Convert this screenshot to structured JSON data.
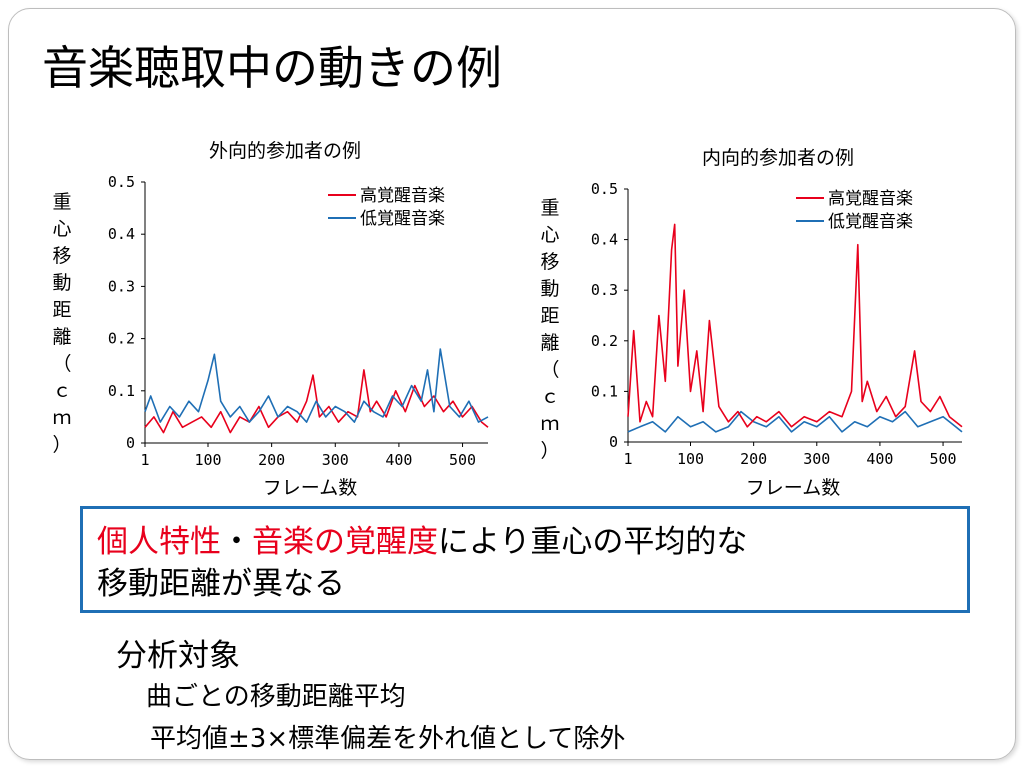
{
  "slide": {
    "title": "音楽聴取中の動きの例",
    "summary": {
      "highlight1": "個人特性",
      "separator": "・",
      "highlight2": "音楽の覚醒度",
      "rest_line1": "により重心の平均的な",
      "line2": "移動距離が異なる"
    },
    "section_heading": "分析対象",
    "detail_lines": [
      "曲ごとの移動距離平均",
      "平均値±3×標準偏差を外れ値として除外"
    ]
  },
  "colors": {
    "high": "#e8001c",
    "low": "#1f6fb5",
    "box": "#1f6fb5"
  },
  "chart_data": [
    {
      "type": "line",
      "title": "外向的参加者の例",
      "xlabel": "フレーム数",
      "ylabel": "重心移動距離（ｃｍ）",
      "ylim": [
        0,
        0.5
      ],
      "xlim": [
        1,
        540
      ],
      "yticks": [
        0,
        0.1,
        0.2,
        0.3,
        0.4,
        0.5
      ],
      "ytick_labels": [
        "0",
        "0.1",
        "0.2",
        "0.3",
        "0.4",
        "0.5"
      ],
      "xticks": [
        1,
        100,
        200,
        300,
        400,
        500
      ],
      "xtick_labels": [
        "1",
        "100",
        "200",
        "300",
        "400",
        "500"
      ],
      "legend": "top-right",
      "series": [
        {
          "name": "高覚醒音楽",
          "color": "#e8001c",
          "x": [
            1,
            15,
            30,
            45,
            60,
            75,
            90,
            105,
            120,
            135,
            150,
            165,
            180,
            195,
            210,
            225,
            240,
            255,
            265,
            275,
            290,
            305,
            320,
            335,
            345,
            355,
            365,
            380,
            395,
            410,
            425,
            440,
            455,
            470,
            485,
            500,
            515,
            530,
            540
          ],
          "values": [
            0.03,
            0.05,
            0.02,
            0.06,
            0.03,
            0.04,
            0.05,
            0.03,
            0.06,
            0.02,
            0.05,
            0.04,
            0.07,
            0.03,
            0.05,
            0.06,
            0.04,
            0.08,
            0.13,
            0.05,
            0.07,
            0.04,
            0.06,
            0.05,
            0.14,
            0.06,
            0.08,
            0.05,
            0.1,
            0.06,
            0.11,
            0.07,
            0.09,
            0.06,
            0.08,
            0.05,
            0.07,
            0.04,
            0.03
          ]
        },
        {
          "name": "低覚醒音楽",
          "color": "#1f6fb5",
          "x": [
            1,
            10,
            25,
            40,
            55,
            70,
            85,
            100,
            110,
            120,
            135,
            150,
            165,
            180,
            195,
            210,
            225,
            240,
            255,
            270,
            285,
            300,
            315,
            330,
            345,
            360,
            375,
            390,
            405,
            420,
            435,
            445,
            455,
            465,
            480,
            495,
            510,
            525,
            540
          ],
          "values": [
            0.06,
            0.09,
            0.04,
            0.07,
            0.05,
            0.08,
            0.06,
            0.12,
            0.17,
            0.08,
            0.05,
            0.07,
            0.04,
            0.06,
            0.09,
            0.05,
            0.07,
            0.06,
            0.04,
            0.08,
            0.05,
            0.07,
            0.06,
            0.04,
            0.08,
            0.06,
            0.05,
            0.09,
            0.07,
            0.11,
            0.08,
            0.14,
            0.06,
            0.18,
            0.07,
            0.05,
            0.08,
            0.04,
            0.05
          ]
        }
      ]
    },
    {
      "type": "line",
      "title": "内向的参加者の例",
      "xlabel": "フレーム数",
      "ylabel": "重心移動距離（ｃｍ）",
      "ylim": [
        0,
        0.5
      ],
      "xlim": [
        1,
        530
      ],
      "yticks": [
        0,
        0.1,
        0.2,
        0.3,
        0.4,
        0.5
      ],
      "ytick_labels": [
        "0",
        "0.1",
        "0.2",
        "0.3",
        "0.4",
        "0.5"
      ],
      "xticks": [
        1,
        100,
        200,
        300,
        400,
        500
      ],
      "xtick_labels": [
        "1",
        "100",
        "200",
        "300",
        "400",
        "500"
      ],
      "legend": "top-right",
      "series": [
        {
          "name": "高覚醒音楽",
          "color": "#e8001c",
          "x": [
            1,
            10,
            20,
            30,
            40,
            50,
            60,
            70,
            75,
            80,
            90,
            100,
            110,
            120,
            130,
            145,
            160,
            175,
            190,
            205,
            220,
            240,
            260,
            280,
            300,
            320,
            340,
            355,
            365,
            372,
            380,
            395,
            410,
            425,
            440,
            455,
            465,
            480,
            495,
            510,
            530
          ],
          "values": [
            0.05,
            0.22,
            0.04,
            0.08,
            0.05,
            0.25,
            0.12,
            0.38,
            0.43,
            0.15,
            0.3,
            0.1,
            0.18,
            0.06,
            0.24,
            0.07,
            0.04,
            0.06,
            0.03,
            0.05,
            0.04,
            0.06,
            0.03,
            0.05,
            0.04,
            0.06,
            0.05,
            0.1,
            0.39,
            0.08,
            0.12,
            0.06,
            0.09,
            0.05,
            0.07,
            0.18,
            0.08,
            0.06,
            0.09,
            0.05,
            0.03
          ]
        },
        {
          "name": "低覚醒音楽",
          "color": "#1f6fb5",
          "x": [
            1,
            20,
            40,
            60,
            80,
            100,
            120,
            140,
            160,
            180,
            200,
            220,
            240,
            260,
            280,
            300,
            320,
            340,
            360,
            380,
            400,
            420,
            440,
            460,
            480,
            500,
            520,
            530
          ],
          "values": [
            0.02,
            0.03,
            0.04,
            0.02,
            0.05,
            0.03,
            0.04,
            0.02,
            0.03,
            0.06,
            0.04,
            0.03,
            0.05,
            0.02,
            0.04,
            0.03,
            0.05,
            0.02,
            0.04,
            0.03,
            0.05,
            0.04,
            0.06,
            0.03,
            0.04,
            0.05,
            0.03,
            0.02
          ]
        }
      ]
    }
  ]
}
